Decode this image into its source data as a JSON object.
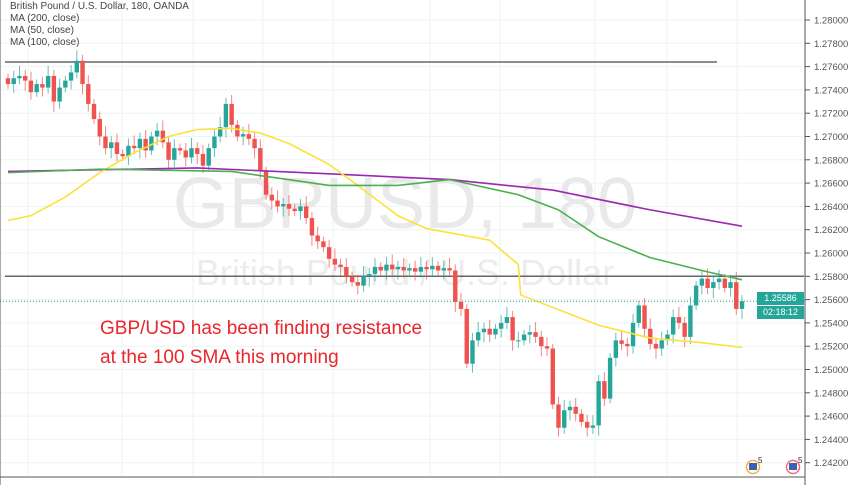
{
  "header": {
    "title": "British Pound / U.S. Dollar, 180, OANDA"
  },
  "legend": [
    "MA (200, close)",
    "MA (50, close)",
    "MA (100, close)"
  ],
  "watermark": {
    "symbol": "GBPUSD, 180",
    "name": "British Pound / U.S. Dollar"
  },
  "annotation": [
    "GBP/USD has been finding resistance",
    "at the 100 SMA this morning"
  ],
  "price_label": {
    "price": "1.25586",
    "countdown": "02:18:12"
  },
  "events": [
    {
      "icon": "us-flag-event-icon",
      "count": "5"
    },
    {
      "icon": "gb-us-flag-event-icon",
      "count": "5",
      "extra": "1"
    }
  ],
  "colors": {
    "up": "#26a69a",
    "down": "#ef5350",
    "ma200": "#9c27b0",
    "ma50": "#fbe23a",
    "ma100": "#4caf50",
    "annotation": "#e8262b"
  },
  "chart_data": {
    "type": "candlestick",
    "title": "British Pound / U.S. Dollar, 180, OANDA",
    "ylim": [
      1.241,
      1.281
    ],
    "yticks": [
      "1.28000",
      "1.27800",
      "1.27600",
      "1.27400",
      "1.27200",
      "1.27000",
      "1.26800",
      "1.26600",
      "1.26400",
      "1.26200",
      "1.26000",
      "1.25800",
      "1.25600",
      "1.25400",
      "1.25200",
      "1.25000",
      "1.24800",
      "1.24600",
      "1.24400",
      "1.24200"
    ],
    "closes": [
      1.2745,
      1.275,
      1.2752,
      1.2748,
      1.2738,
      1.2745,
      1.2742,
      1.2752,
      1.273,
      1.2742,
      1.2748,
      1.2755,
      1.2765,
      1.2745,
      1.2728,
      1.2715,
      1.27,
      1.269,
      1.2695,
      1.2685,
      1.2683,
      1.2692,
      1.269,
      1.2698,
      1.2688,
      1.27,
      1.2705,
      1.2695,
      1.268,
      1.269,
      1.2688,
      1.2682,
      1.269,
      1.2685,
      1.2675,
      1.269,
      1.27,
      1.2708,
      1.2728,
      1.271,
      1.27,
      1.2702,
      1.2698,
      1.269,
      1.267,
      1.265,
      1.2645,
      1.264,
      1.2642,
      1.2638,
      1.2636,
      1.264,
      1.263,
      1.2615,
      1.261,
      1.2605,
      1.2595,
      1.259,
      1.2588,
      1.258,
      1.2575,
      1.2572,
      1.258,
      1.2582,
      1.2588,
      1.2585,
      1.259,
      1.2586,
      1.2588,
      1.2585,
      1.2587,
      1.2584,
      1.2588,
      1.2586,
      1.2589,
      1.2585,
      1.2587,
      1.2585,
      1.2558,
      1.2552,
      1.2505,
      1.2525,
      1.2532,
      1.2535,
      1.253,
      1.2535,
      1.254,
      1.2545,
      1.2525,
      1.2525,
      1.253,
      1.2532,
      1.2528,
      1.252,
      1.2518,
      1.247,
      1.245,
      1.2465,
      1.2468,
      1.2462,
      1.2455,
      1.245,
      1.2452,
      1.249,
      1.2475,
      1.251,
      1.2525,
      1.2522,
      1.252,
      1.254,
      1.2555,
      1.2535,
      1.2522,
      1.2518,
      1.2525,
      1.253,
      1.2545,
      1.254,
      1.2528,
      1.2555,
      1.2572,
      1.2578,
      1.257,
      1.2575,
      1.2578,
      1.257,
      1.2575,
      1.2552,
      1.25586
    ],
    "series": [
      {
        "name": "MA (200, close)",
        "points": [
          [
            0,
            1.267
          ],
          [
            33,
            1.2673
          ],
          [
            56,
            1.2668
          ],
          [
            77,
            1.2663
          ],
          [
            95,
            1.2654
          ],
          [
            112,
            1.2637
          ],
          [
            128,
            1.2623
          ]
        ]
      },
      {
        "name": "MA (50, close)",
        "points": [
          [
            0,
            1.2628
          ],
          [
            4,
            1.2632
          ],
          [
            10,
            1.2648
          ],
          [
            16,
            1.2669
          ],
          [
            22,
            1.2686
          ],
          [
            28,
            1.27
          ],
          [
            33,
            1.2706
          ],
          [
            39,
            1.2707
          ],
          [
            44,
            1.2703
          ],
          [
            49,
            1.2694
          ],
          [
            56,
            1.2676
          ],
          [
            61,
            1.2658
          ],
          [
            68,
            1.2632
          ],
          [
            73,
            1.2621
          ],
          [
            84,
            1.2611
          ],
          [
            89,
            1.259
          ],
          [
            89.4,
            1.2564
          ],
          [
            103,
            1.2538
          ],
          [
            112,
            1.2527
          ],
          [
            121,
            1.2523
          ],
          [
            128,
            1.2519
          ]
        ]
      },
      {
        "name": "MA (100, close)",
        "points": [
          [
            0,
            1.2669
          ],
          [
            16,
            1.2672
          ],
          [
            39,
            1.267
          ],
          [
            56,
            1.2658
          ],
          [
            68,
            1.2658
          ],
          [
            77,
            1.2663
          ],
          [
            89,
            1.265
          ],
          [
            96,
            1.2637
          ],
          [
            103,
            1.2614
          ],
          [
            112,
            1.2596
          ],
          [
            121,
            1.2585
          ],
          [
            128,
            1.2577
          ]
        ]
      }
    ],
    "hlines": [
      1.2764,
      1.258
    ],
    "current_price": 1.25586
  }
}
